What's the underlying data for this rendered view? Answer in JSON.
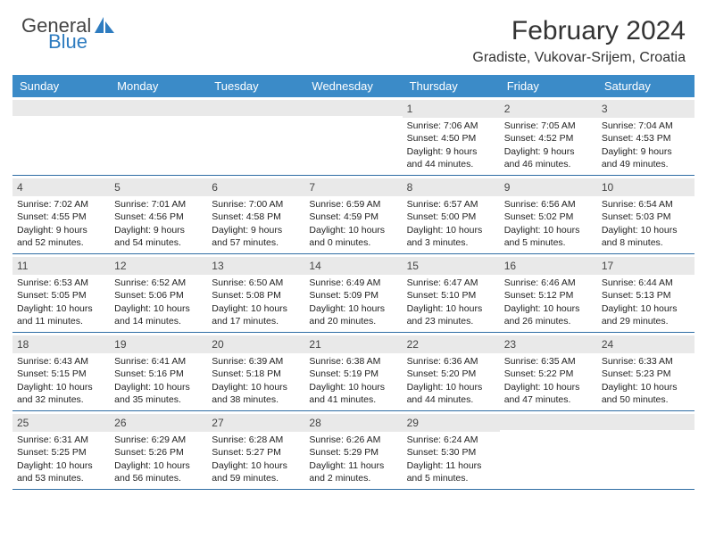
{
  "brand": {
    "line1": "General",
    "line2": "Blue",
    "logo_color": "#2e7cc0",
    "text_gray": "#444444"
  },
  "title": "February 2024",
  "location": "Gradiste, Vukovar-Srijem, Croatia",
  "header_bg": "#3b8bc8",
  "band_bg": "#e9e9e9",
  "border_color": "#2e6da4",
  "day_names": [
    "Sunday",
    "Monday",
    "Tuesday",
    "Wednesday",
    "Thursday",
    "Friday",
    "Saturday"
  ],
  "weeks": [
    [
      null,
      null,
      null,
      null,
      {
        "n": "1",
        "sr": "7:06 AM",
        "ss": "4:50 PM",
        "d1": "Daylight: 9 hours",
        "d2": "and 44 minutes."
      },
      {
        "n": "2",
        "sr": "7:05 AM",
        "ss": "4:52 PM",
        "d1": "Daylight: 9 hours",
        "d2": "and 46 minutes."
      },
      {
        "n": "3",
        "sr": "7:04 AM",
        "ss": "4:53 PM",
        "d1": "Daylight: 9 hours",
        "d2": "and 49 minutes."
      }
    ],
    [
      {
        "n": "4",
        "sr": "7:02 AM",
        "ss": "4:55 PM",
        "d1": "Daylight: 9 hours",
        "d2": "and 52 minutes."
      },
      {
        "n": "5",
        "sr": "7:01 AM",
        "ss": "4:56 PM",
        "d1": "Daylight: 9 hours",
        "d2": "and 54 minutes."
      },
      {
        "n": "6",
        "sr": "7:00 AM",
        "ss": "4:58 PM",
        "d1": "Daylight: 9 hours",
        "d2": "and 57 minutes."
      },
      {
        "n": "7",
        "sr": "6:59 AM",
        "ss": "4:59 PM",
        "d1": "Daylight: 10 hours",
        "d2": "and 0 minutes."
      },
      {
        "n": "8",
        "sr": "6:57 AM",
        "ss": "5:00 PM",
        "d1": "Daylight: 10 hours",
        "d2": "and 3 minutes."
      },
      {
        "n": "9",
        "sr": "6:56 AM",
        "ss": "5:02 PM",
        "d1": "Daylight: 10 hours",
        "d2": "and 5 minutes."
      },
      {
        "n": "10",
        "sr": "6:54 AM",
        "ss": "5:03 PM",
        "d1": "Daylight: 10 hours",
        "d2": "and 8 minutes."
      }
    ],
    [
      {
        "n": "11",
        "sr": "6:53 AM",
        "ss": "5:05 PM",
        "d1": "Daylight: 10 hours",
        "d2": "and 11 minutes."
      },
      {
        "n": "12",
        "sr": "6:52 AM",
        "ss": "5:06 PM",
        "d1": "Daylight: 10 hours",
        "d2": "and 14 minutes."
      },
      {
        "n": "13",
        "sr": "6:50 AM",
        "ss": "5:08 PM",
        "d1": "Daylight: 10 hours",
        "d2": "and 17 minutes."
      },
      {
        "n": "14",
        "sr": "6:49 AM",
        "ss": "5:09 PM",
        "d1": "Daylight: 10 hours",
        "d2": "and 20 minutes."
      },
      {
        "n": "15",
        "sr": "6:47 AM",
        "ss": "5:10 PM",
        "d1": "Daylight: 10 hours",
        "d2": "and 23 minutes."
      },
      {
        "n": "16",
        "sr": "6:46 AM",
        "ss": "5:12 PM",
        "d1": "Daylight: 10 hours",
        "d2": "and 26 minutes."
      },
      {
        "n": "17",
        "sr": "6:44 AM",
        "ss": "5:13 PM",
        "d1": "Daylight: 10 hours",
        "d2": "and 29 minutes."
      }
    ],
    [
      {
        "n": "18",
        "sr": "6:43 AM",
        "ss": "5:15 PM",
        "d1": "Daylight: 10 hours",
        "d2": "and 32 minutes."
      },
      {
        "n": "19",
        "sr": "6:41 AM",
        "ss": "5:16 PM",
        "d1": "Daylight: 10 hours",
        "d2": "and 35 minutes."
      },
      {
        "n": "20",
        "sr": "6:39 AM",
        "ss": "5:18 PM",
        "d1": "Daylight: 10 hours",
        "d2": "and 38 minutes."
      },
      {
        "n": "21",
        "sr": "6:38 AM",
        "ss": "5:19 PM",
        "d1": "Daylight: 10 hours",
        "d2": "and 41 minutes."
      },
      {
        "n": "22",
        "sr": "6:36 AM",
        "ss": "5:20 PM",
        "d1": "Daylight: 10 hours",
        "d2": "and 44 minutes."
      },
      {
        "n": "23",
        "sr": "6:35 AM",
        "ss": "5:22 PM",
        "d1": "Daylight: 10 hours",
        "d2": "and 47 minutes."
      },
      {
        "n": "24",
        "sr": "6:33 AM",
        "ss": "5:23 PM",
        "d1": "Daylight: 10 hours",
        "d2": "and 50 minutes."
      }
    ],
    [
      {
        "n": "25",
        "sr": "6:31 AM",
        "ss": "5:25 PM",
        "d1": "Daylight: 10 hours",
        "d2": "and 53 minutes."
      },
      {
        "n": "26",
        "sr": "6:29 AM",
        "ss": "5:26 PM",
        "d1": "Daylight: 10 hours",
        "d2": "and 56 minutes."
      },
      {
        "n": "27",
        "sr": "6:28 AM",
        "ss": "5:27 PM",
        "d1": "Daylight: 10 hours",
        "d2": "and 59 minutes."
      },
      {
        "n": "28",
        "sr": "6:26 AM",
        "ss": "5:29 PM",
        "d1": "Daylight: 11 hours",
        "d2": "and 2 minutes."
      },
      {
        "n": "29",
        "sr": "6:24 AM",
        "ss": "5:30 PM",
        "d1": "Daylight: 11 hours",
        "d2": "and 5 minutes."
      },
      null,
      null
    ]
  ]
}
